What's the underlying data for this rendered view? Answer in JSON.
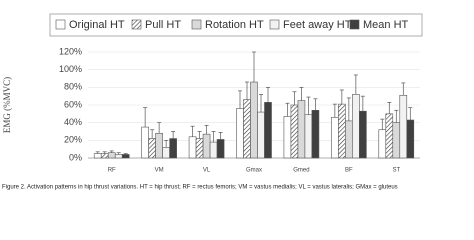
{
  "chart_data": {
    "type": "bar",
    "y_label": "EMG (%MVC)",
    "categories": [
      "RF",
      "VM",
      "VL",
      "Gmax",
      "Gmed",
      "BF",
      "ST"
    ],
    "series": [
      {
        "name": "Original HT",
        "color": "#ffffff",
        "values": [
          5,
          35,
          24,
          56,
          47,
          46,
          32
        ],
        "errors": [
          2,
          22,
          12,
          20,
          15,
          15,
          12
        ]
      },
      {
        "name": "Pull HT",
        "color": "#ffffff",
        "pattern": "hatch",
        "values": [
          5,
          22,
          22,
          66,
          60,
          61,
          50
        ],
        "errors": [
          2,
          10,
          8,
          20,
          15,
          16,
          13
        ]
      },
      {
        "name": "Rotation HT",
        "color": "#d9d9d9",
        "values": [
          6,
          28,
          27,
          86,
          65,
          42,
          40
        ],
        "errors": [
          2,
          12,
          10,
          34,
          15,
          26,
          14
        ]
      },
      {
        "name": "Feet away HT",
        "color": "#f2f2f2",
        "values": [
          4,
          12,
          18,
          52,
          49,
          72,
          71
        ],
        "errors": [
          2,
          8,
          12,
          20,
          20,
          22,
          14
        ]
      },
      {
        "name": "Mean HT",
        "color": "#404040",
        "values": [
          4,
          22,
          21,
          63,
          54,
          53,
          43
        ],
        "errors": [
          1,
          8,
          8,
          17,
          13,
          17,
          14
        ]
      }
    ],
    "ylim": [
      0,
      120
    ],
    "yticks": [
      {
        "value": 0,
        "label": "0%"
      },
      {
        "value": 20,
        "label": "20%"
      },
      {
        "value": 40,
        "label": "40%"
      },
      {
        "value": 60,
        "label": "60%"
      },
      {
        "value": 80,
        "label": "80%"
      },
      {
        "value": 100,
        "label": "100%"
      },
      {
        "value": 120,
        "label": "120%"
      }
    ],
    "grid": true,
    "legend": "top",
    "caption": "Figure 2. Activation patterns in hip thrust variations. HT = hip thrust; RF = rectus femoris; VM = vastus medialis; VL = vastus lateralis; GMax = gluteus"
  }
}
